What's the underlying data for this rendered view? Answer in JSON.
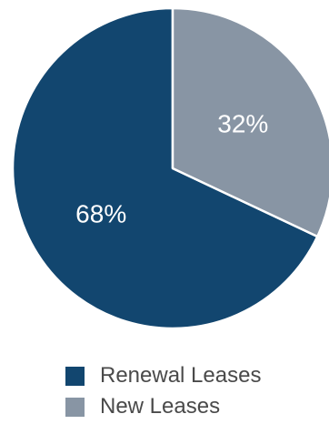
{
  "chart_data": {
    "type": "pie",
    "categories": [
      "Renewal Leases",
      "New Leases"
    ],
    "values": [
      68,
      32
    ],
    "data_labels": [
      "68%",
      "32%"
    ],
    "colors": [
      "#12466f",
      "#8895a4"
    ],
    "legend_position": "bottom"
  }
}
